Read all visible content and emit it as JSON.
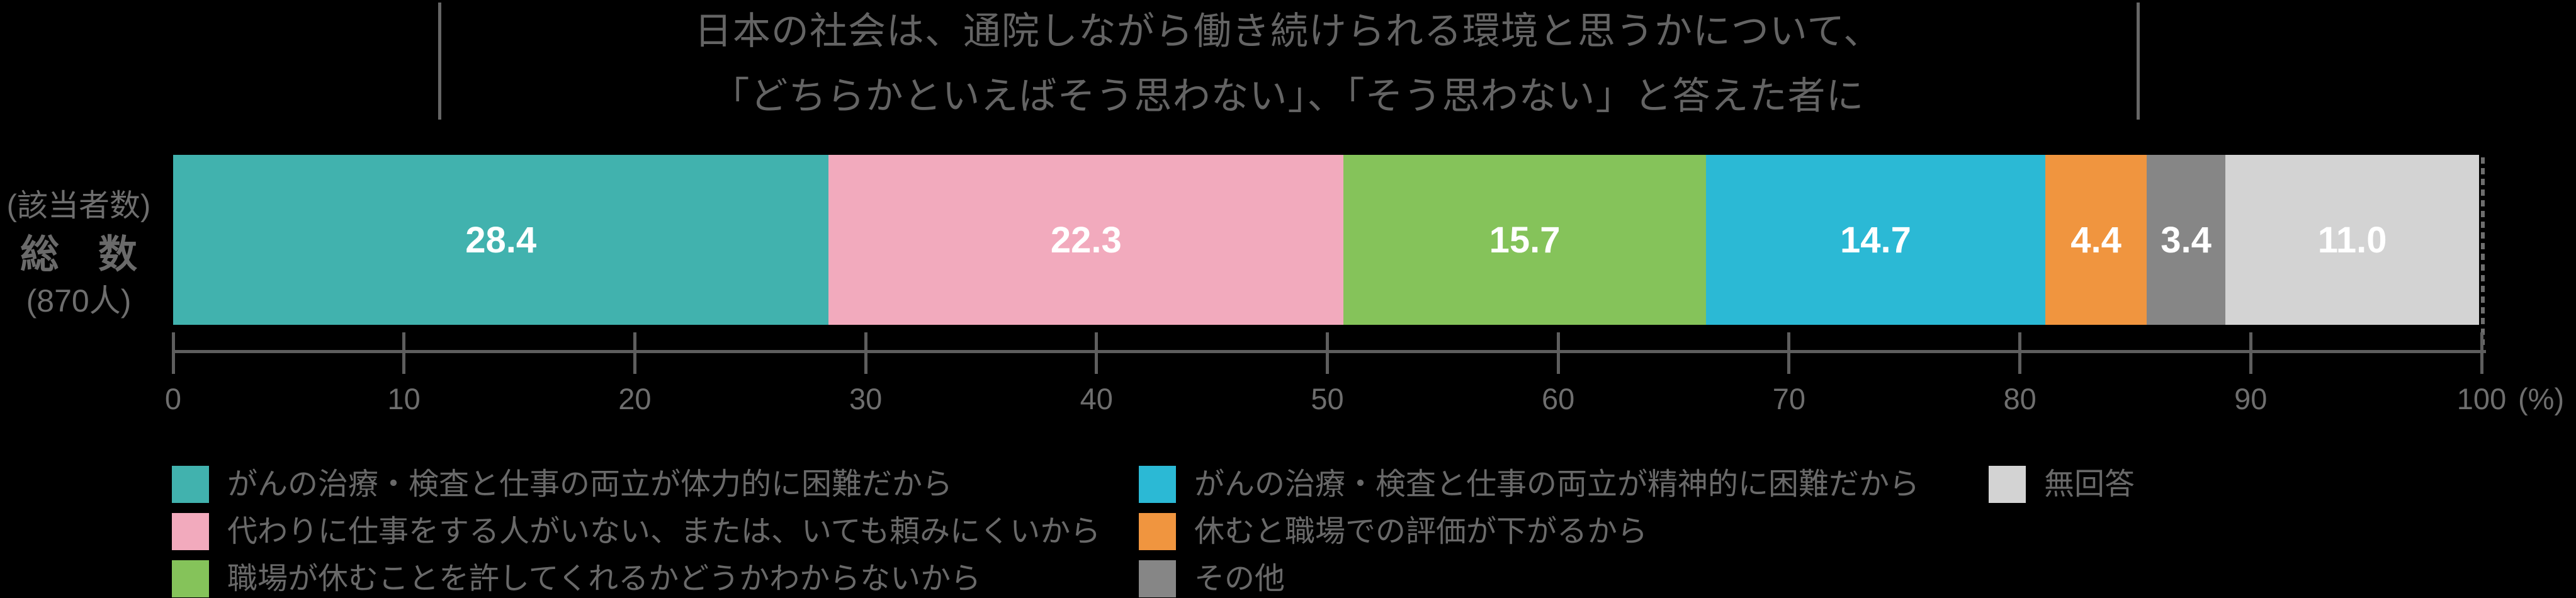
{
  "chart_data": {
    "type": "bar",
    "orientation": "horizontal",
    "stacked": true,
    "title": "日本の社会は、通院しながら働き続けられる環境と思うかについて、「どちらかといえばそう思わない」、「そう思わない」と答えた者に",
    "title_lines": [
      "日本の社会は、通院しながら働き続けられる環境と思うかについて、",
      "「どちらかといえばそう思わない」、「そう思わない」と答えた者に"
    ],
    "row_header": {
      "line1": "(該当者数)",
      "line2": "総　数",
      "line3": "(870人)"
    },
    "categories": [
      "総数 (870人)"
    ],
    "series": [
      {
        "name": "がんの治療・検査と仕事の両立が体力的に困難だから",
        "value": 28.4,
        "label": "28.4",
        "color": "#41B2AE"
      },
      {
        "name": "代わりに仕事をする人がいない、または、いても頼みにくいから",
        "value": 22.3,
        "label": "22.3",
        "color": "#F2AABD"
      },
      {
        "name": "職場が休むことを許してくれるかどうかわからないから",
        "value": 15.7,
        "label": "15.7",
        "color": "#85C35A"
      },
      {
        "name": "がんの治療・検査と仕事の両立が精神的に困難だから",
        "value": 14.7,
        "label": "14.7",
        "color": "#2BB9D5"
      },
      {
        "name": "休むと職場での評価が下がるから",
        "value": 4.4,
        "label": "4.4",
        "color": "#F0953F"
      },
      {
        "name": "その他",
        "value": 3.4,
        "label": "3.4",
        "color": "#868686"
      },
      {
        "name": "無回答",
        "value": 11.0,
        "label": "11.0",
        "color": "#D3D3D3"
      }
    ],
    "x_axis": {
      "min": 0,
      "max": 100,
      "tick_labels": [
        "0",
        "10",
        "20",
        "30",
        "40",
        "50",
        "60",
        "70",
        "80",
        "90",
        "100"
      ],
      "unit": "(%)"
    },
    "legend_position": "bottom",
    "grid": false,
    "background": "#000000",
    "value_label_color": "#FFFFFF"
  }
}
